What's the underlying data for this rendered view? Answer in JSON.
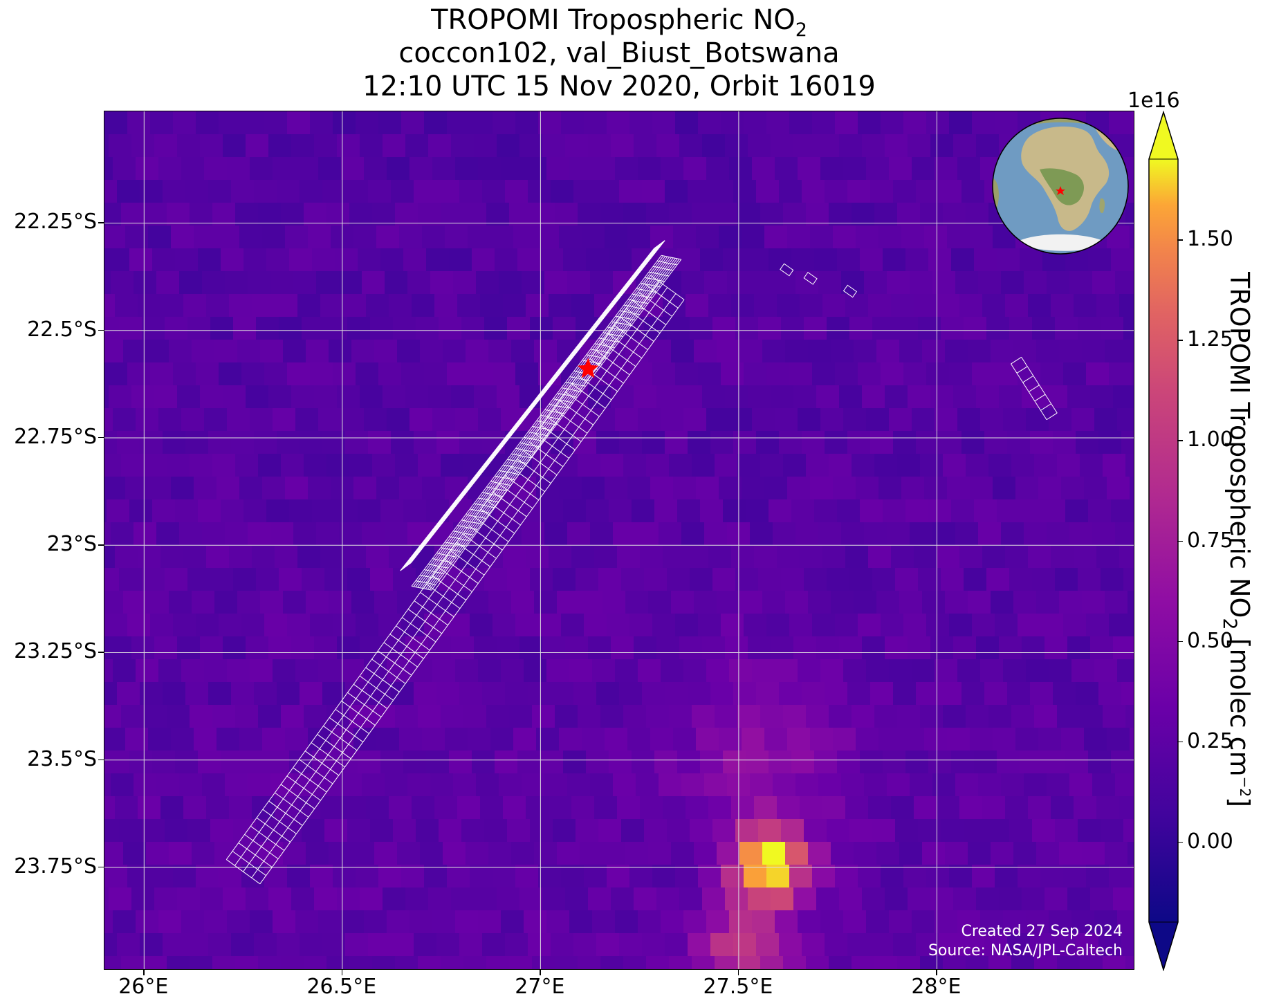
{
  "title": {
    "line1_prefix": "TROPOMI Tropospheric NO",
    "line1_subscript": "2",
    "line2": "coccon102, val_Biust_Botswana",
    "line3": "12:10 UTC 15 Nov 2020, Orbit 16019"
  },
  "axes": {
    "y_ticks": [
      "22.25°S",
      "22.5°S",
      "22.75°S",
      "23°S",
      "23.25°S",
      "23.5°S",
      "23.75°S"
    ],
    "y_values": [
      -22.25,
      -22.5,
      -22.75,
      -23.0,
      -23.25,
      -23.5,
      -23.75
    ],
    "x_ticks": [
      "26°E",
      "26.5°E",
      "27°E",
      "27.5°E",
      "28°E"
    ],
    "x_values": [
      26.0,
      26.5,
      27.0,
      27.5,
      28.0
    ],
    "lon_range": [
      25.9,
      28.5
    ],
    "lat_range": [
      -23.99,
      -21.99
    ],
    "gridlines": true
  },
  "colorbar": {
    "exponent": "1e16",
    "ticks": [
      "0.00",
      "0.25",
      "0.50",
      "0.75",
      "1.00",
      "1.25",
      "1.50"
    ],
    "tick_values": [
      0.0,
      0.25,
      0.5,
      0.75,
      1.0,
      1.25,
      1.5
    ],
    "range": [
      -0.2,
      1.7
    ],
    "colormap": "plasma",
    "extend": "both",
    "label_prefix": "TROPOMI Tropospheric NO",
    "label_sub": "2",
    "label_mid": " [molec cm",
    "label_sup": "−2",
    "label_suffix": "]"
  },
  "site": {
    "lon": 27.12,
    "lat": -22.59,
    "marker": "red-star",
    "color": "#ff0000"
  },
  "footprint": {
    "color": "#ffffff",
    "note": "COCCON instrument footprint polygons along slant path"
  },
  "hotspot": {
    "lon": 27.55,
    "lat": -23.72,
    "peak_value": 1.6
  },
  "inset": {
    "type": "globe",
    "center": "Africa",
    "marker": "red-star"
  },
  "footer": {
    "created": "Created 27 Sep 2024",
    "source": "Source: NASA/JPL-Caltech"
  }
}
